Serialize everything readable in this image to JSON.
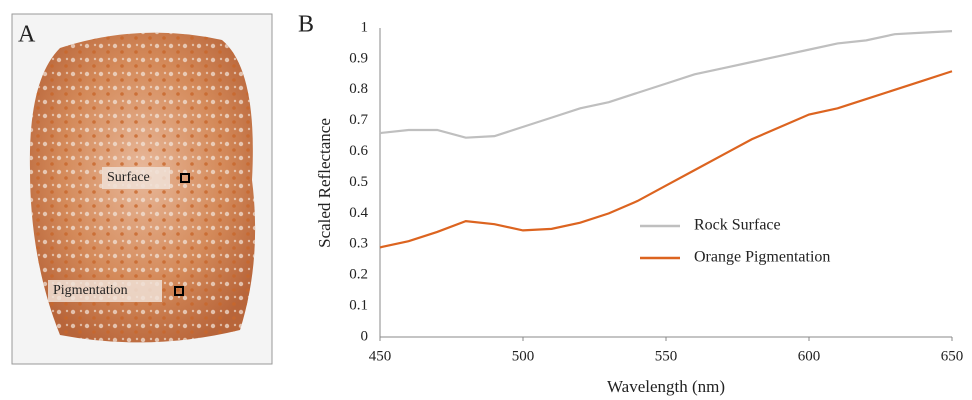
{
  "panels": {
    "a": {
      "letter": "A",
      "labels": [
        "Surface",
        "Pigmentation"
      ]
    },
    "b": {
      "letter": "B"
    }
  },
  "chart_data": {
    "type": "line",
    "x_label": "Wavelength (nm)",
    "y_label": "Scaled Reflectance",
    "x": [
      450,
      460,
      470,
      480,
      490,
      500,
      510,
      520,
      530,
      540,
      550,
      560,
      570,
      580,
      590,
      600,
      610,
      620,
      630,
      640,
      650
    ],
    "series": [
      {
        "name": "Rock Surface",
        "color": "#bfbfbf",
        "values": [
          0.66,
          0.67,
          0.67,
          0.645,
          0.65,
          0.68,
          0.71,
          0.74,
          0.76,
          0.79,
          0.82,
          0.85,
          0.87,
          0.89,
          0.91,
          0.93,
          0.95,
          0.96,
          0.98,
          0.985,
          0.99
        ]
      },
      {
        "name": "Orange Pigmentation",
        "color": "#dc6420",
        "values": [
          0.29,
          0.31,
          0.34,
          0.375,
          0.365,
          0.345,
          0.35,
          0.37,
          0.4,
          0.44,
          0.49,
          0.54,
          0.59,
          0.64,
          0.68,
          0.72,
          0.74,
          0.77,
          0.8,
          0.83,
          0.86
        ]
      }
    ],
    "xlim": [
      450,
      650
    ],
    "xticks": [
      450,
      500,
      550,
      600,
      650
    ],
    "ylim": [
      0,
      1
    ],
    "yticks": [
      0,
      0.1,
      0.2,
      0.3,
      0.4,
      0.5,
      0.6,
      0.7,
      0.8,
      0.9,
      1
    ],
    "grid": false
  }
}
